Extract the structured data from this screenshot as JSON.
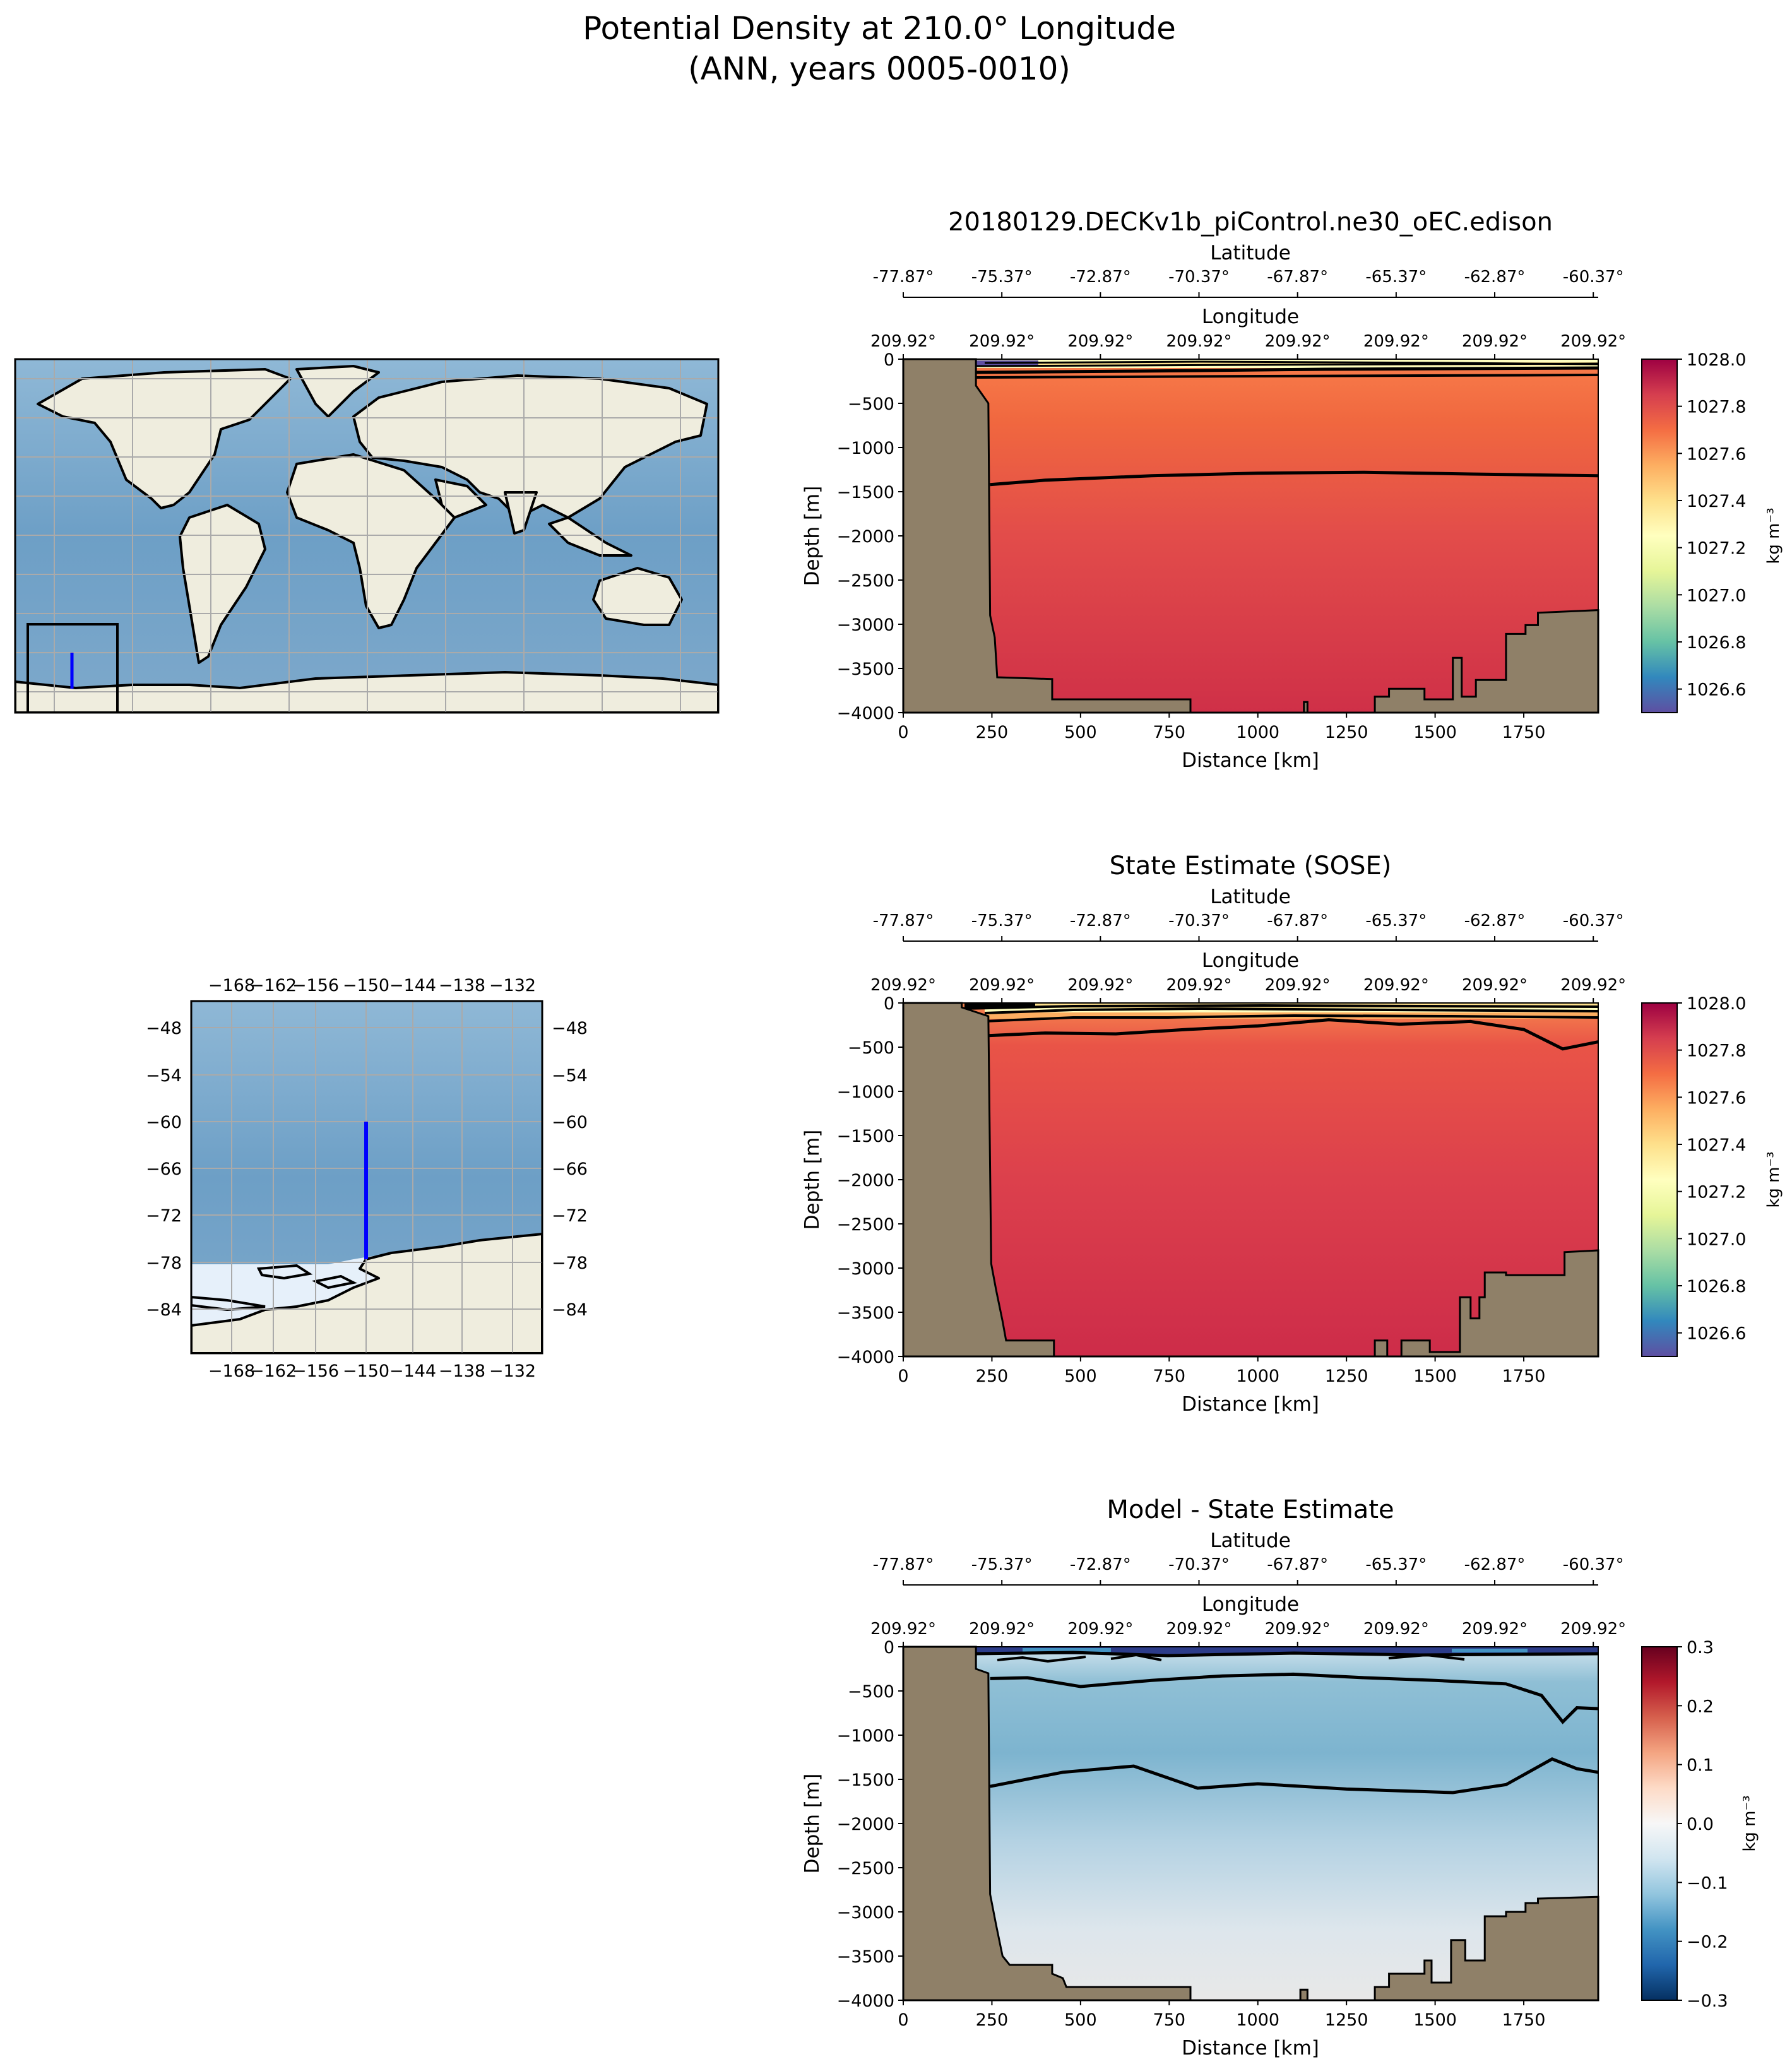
{
  "figure": {
    "title_line1": "Potential Density at 210.0° Longitude",
    "title_line2": "(ANN, years 0005-0010)"
  },
  "inset": {
    "x_ticks": [
      "−168",
      "−162",
      "−156",
      "−150",
      "−144",
      "−138",
      "−132"
    ],
    "y_ticks": [
      "−48",
      "−54",
      "−60",
      "−66",
      "−72",
      "−78",
      "−84"
    ]
  },
  "colors": {
    "land": "#8f8068",
    "ocean": "#76a6c9",
    "continent": "#efedde",
    "track": "#0000ff"
  },
  "chart_data": [
    {
      "type": "heatmap",
      "title": "20180129.DECKv1b_piControl.ne30_oEC.edison",
      "xlabel": "Distance [km]",
      "ylabel": "Depth [m]",
      "xlim": [
        0,
        1960
      ],
      "ylim": [
        -4000,
        0
      ],
      "x_ticks": [
        "0",
        "250",
        "500",
        "750",
        "1000",
        "1250",
        "1500",
        "1750"
      ],
      "y_ticks": [
        "0",
        "−500",
        "−1000",
        "−1500",
        "−2000",
        "−2500",
        "−3000",
        "−3500",
        "−4000"
      ],
      "lat_label": "Latitude",
      "lat_ticks": [
        "-77.87°",
        "-75.37°",
        "-72.87°",
        "-70.37°",
        "-67.87°",
        "-65.37°",
        "-62.87°",
        "-60.37°"
      ],
      "lon_label": "Longitude",
      "lon_ticks": [
        "209.92°",
        "209.92°",
        "209.92°",
        "209.92°",
        "209.92°",
        "209.92°",
        "209.92°",
        "209.92°"
      ],
      "colorbar": {
        "colormap": "Spectral_r",
        "range": [
          1026.5,
          1028.0
        ],
        "ticks": [
          "1026.6",
          "1026.8",
          "1027.0",
          "1027.2",
          "1027.4",
          "1027.6",
          "1027.8",
          "1028.0"
        ],
        "label": "kg m⁻³"
      },
      "contour_depth": [
        [
          245,
          -1420
        ],
        [
          400,
          -1370
        ],
        [
          700,
          -1320
        ],
        [
          1000,
          -1290
        ],
        [
          1300,
          -1280
        ],
        [
          1600,
          -1300
        ],
        [
          1960,
          -1320
        ]
      ],
      "bathymetry": [
        [
          0,
          0
        ],
        [
          205,
          0
        ],
        [
          205,
          -300
        ],
        [
          240,
          -500
        ],
        [
          245,
          -2900
        ],
        [
          258,
          -3150
        ],
        [
          265,
          -3600
        ],
        [
          420,
          -3620
        ],
        [
          420,
          -3850
        ],
        [
          810,
          -3850
        ],
        [
          810,
          -4000
        ],
        [
          1130,
          -4000
        ],
        [
          1130,
          -3880
        ],
        [
          1140,
          -3880
        ],
        [
          1140,
          -4000
        ],
        [
          1330,
          -4000
        ],
        [
          1330,
          -3820
        ],
        [
          1370,
          -3820
        ],
        [
          1370,
          -3730
        ],
        [
          1470,
          -3730
        ],
        [
          1470,
          -3850
        ],
        [
          1550,
          -3850
        ],
        [
          1550,
          -3380
        ],
        [
          1575,
          -3380
        ],
        [
          1575,
          -3820
        ],
        [
          1615,
          -3820
        ],
        [
          1615,
          -3630
        ],
        [
          1700,
          -3630
        ],
        [
          1700,
          -3110
        ],
        [
          1755,
          -3110
        ],
        [
          1755,
          -3010
        ],
        [
          1790,
          -3010
        ],
        [
          1790,
          -2870
        ],
        [
          1960,
          -2840
        ],
        [
          1960,
          -4000
        ],
        [
          0,
          -4000
        ]
      ]
    },
    {
      "type": "heatmap",
      "title": "State Estimate (SOSE)",
      "xlabel": "Distance [km]",
      "ylabel": "Depth [m]",
      "xlim": [
        0,
        1960
      ],
      "ylim": [
        -4000,
        0
      ],
      "x_ticks": [
        "0",
        "250",
        "500",
        "750",
        "1000",
        "1250",
        "1500",
        "1750"
      ],
      "y_ticks": [
        "0",
        "−500",
        "−1000",
        "−1500",
        "−2000",
        "−2500",
        "−3000",
        "−3500",
        "−4000"
      ],
      "lat_label": "Latitude",
      "lat_ticks": [
        "-77.87°",
        "-75.37°",
        "-72.87°",
        "-70.37°",
        "-67.87°",
        "-65.37°",
        "-62.87°",
        "-60.37°"
      ],
      "lon_label": "Longitude",
      "lon_ticks": [
        "209.92°",
        "209.92°",
        "209.92°",
        "209.92°",
        "209.92°",
        "209.92°",
        "209.92°",
        "209.92°"
      ],
      "colorbar": {
        "colormap": "Spectral_r",
        "range": [
          1026.5,
          1028.0
        ],
        "ticks": [
          "1026.6",
          "1026.8",
          "1027.0",
          "1027.2",
          "1027.4",
          "1027.6",
          "1027.8",
          "1028.0"
        ],
        "label": "kg m⁻³"
      },
      "contour_depth": [
        [
          240,
          -370
        ],
        [
          400,
          -340
        ],
        [
          600,
          -350
        ],
        [
          800,
          -300
        ],
        [
          1000,
          -260
        ],
        [
          1200,
          -190
        ],
        [
          1400,
          -240
        ],
        [
          1600,
          -210
        ],
        [
          1750,
          -300
        ],
        [
          1860,
          -520
        ],
        [
          1960,
          -440
        ]
      ],
      "bathymetry": [
        [
          0,
          0
        ],
        [
          165,
          0
        ],
        [
          165,
          -50
        ],
        [
          240,
          -150
        ],
        [
          248,
          -2950
        ],
        [
          262,
          -3250
        ],
        [
          280,
          -3600
        ],
        [
          290,
          -3820
        ],
        [
          425,
          -3820
        ],
        [
          425,
          -4000
        ],
        [
          1330,
          -4000
        ],
        [
          1330,
          -3820
        ],
        [
          1365,
          -3820
        ],
        [
          1365,
          -4000
        ],
        [
          1405,
          -4000
        ],
        [
          1405,
          -3820
        ],
        [
          1485,
          -3820
        ],
        [
          1485,
          -3950
        ],
        [
          1570,
          -3950
        ],
        [
          1570,
          -3330
        ],
        [
          1600,
          -3330
        ],
        [
          1600,
          -3570
        ],
        [
          1625,
          -3570
        ],
        [
          1625,
          -3330
        ],
        [
          1640,
          -3330
        ],
        [
          1640,
          -3050
        ],
        [
          1700,
          -3050
        ],
        [
          1700,
          -3080
        ],
        [
          1865,
          -3080
        ],
        [
          1865,
          -2820
        ],
        [
          1960,
          -2800
        ],
        [
          1960,
          -4000
        ],
        [
          0,
          -4000
        ]
      ]
    },
    {
      "type": "heatmap",
      "title": "Model - State Estimate",
      "xlabel": "Distance [km]",
      "ylabel": "Depth [m]",
      "xlim": [
        0,
        1960
      ],
      "ylim": [
        -4000,
        0
      ],
      "x_ticks": [
        "0",
        "250",
        "500",
        "750",
        "1000",
        "1250",
        "1500",
        "1750"
      ],
      "y_ticks": [
        "0",
        "−500",
        "−1000",
        "−1500",
        "−2000",
        "−2500",
        "−3000",
        "−3500",
        "−4000"
      ],
      "lat_label": "Latitude",
      "lat_ticks": [
        "-77.87°",
        "-75.37°",
        "-72.87°",
        "-70.37°",
        "-67.87°",
        "-65.37°",
        "-62.87°",
        "-60.37°"
      ],
      "lon_label": "Longitude",
      "lon_ticks": [
        "209.92°",
        "209.92°",
        "209.92°",
        "209.92°",
        "209.92°",
        "209.92°",
        "209.92°",
        "209.92°"
      ],
      "colorbar": {
        "colormap": "RdBu_r",
        "range": [
          -0.3,
          0.3
        ],
        "ticks": [
          "−0.3",
          "−0.2",
          "−0.1",
          "0.0",
          "0.1",
          "0.2",
          "0.3"
        ],
        "label": "kg m⁻³"
      },
      "contours_depth": [
        [
          [
            245,
            -360
          ],
          [
            350,
            -350
          ],
          [
            500,
            -450
          ],
          [
            700,
            -380
          ],
          [
            900,
            -330
          ],
          [
            1100,
            -310
          ],
          [
            1300,
            -350
          ],
          [
            1500,
            -380
          ],
          [
            1700,
            -420
          ],
          [
            1800,
            -550
          ],
          [
            1860,
            -850
          ],
          [
            1900,
            -690
          ],
          [
            1960,
            -700
          ]
        ],
        [
          [
            245,
            -1580
          ],
          [
            450,
            -1420
          ],
          [
            650,
            -1350
          ],
          [
            830,
            -1600
          ],
          [
            1000,
            -1550
          ],
          [
            1250,
            -1610
          ],
          [
            1550,
            -1650
          ],
          [
            1700,
            -1560
          ],
          [
            1830,
            -1270
          ],
          [
            1900,
            -1380
          ],
          [
            1960,
            -1420
          ]
        ]
      ],
      "bathymetry": [
        [
          0,
          0
        ],
        [
          205,
          0
        ],
        [
          205,
          -250
        ],
        [
          240,
          -300
        ],
        [
          245,
          -2800
        ],
        [
          262,
          -3150
        ],
        [
          280,
          -3500
        ],
        [
          300,
          -3600
        ],
        [
          420,
          -3600
        ],
        [
          420,
          -3700
        ],
        [
          450,
          -3750
        ],
        [
          460,
          -3850
        ],
        [
          810,
          -3850
        ],
        [
          810,
          -4000
        ],
        [
          1120,
          -4000
        ],
        [
          1120,
          -3880
        ],
        [
          1140,
          -3880
        ],
        [
          1140,
          -4000
        ],
        [
          1330,
          -4000
        ],
        [
          1330,
          -3850
        ],
        [
          1370,
          -3850
        ],
        [
          1370,
          -3700
        ],
        [
          1470,
          -3700
        ],
        [
          1470,
          -3550
        ],
        [
          1490,
          -3550
        ],
        [
          1490,
          -3800
        ],
        [
          1545,
          -3800
        ],
        [
          1545,
          -3320
        ],
        [
          1585,
          -3320
        ],
        [
          1585,
          -3550
        ],
        [
          1640,
          -3550
        ],
        [
          1640,
          -3050
        ],
        [
          1700,
          -3050
        ],
        [
          1700,
          -3000
        ],
        [
          1755,
          -3000
        ],
        [
          1755,
          -2900
        ],
        [
          1790,
          -2900
        ],
        [
          1790,
          -2850
        ],
        [
          1960,
          -2830
        ],
        [
          1960,
          -4000
        ],
        [
          0,
          -4000
        ]
      ]
    }
  ]
}
